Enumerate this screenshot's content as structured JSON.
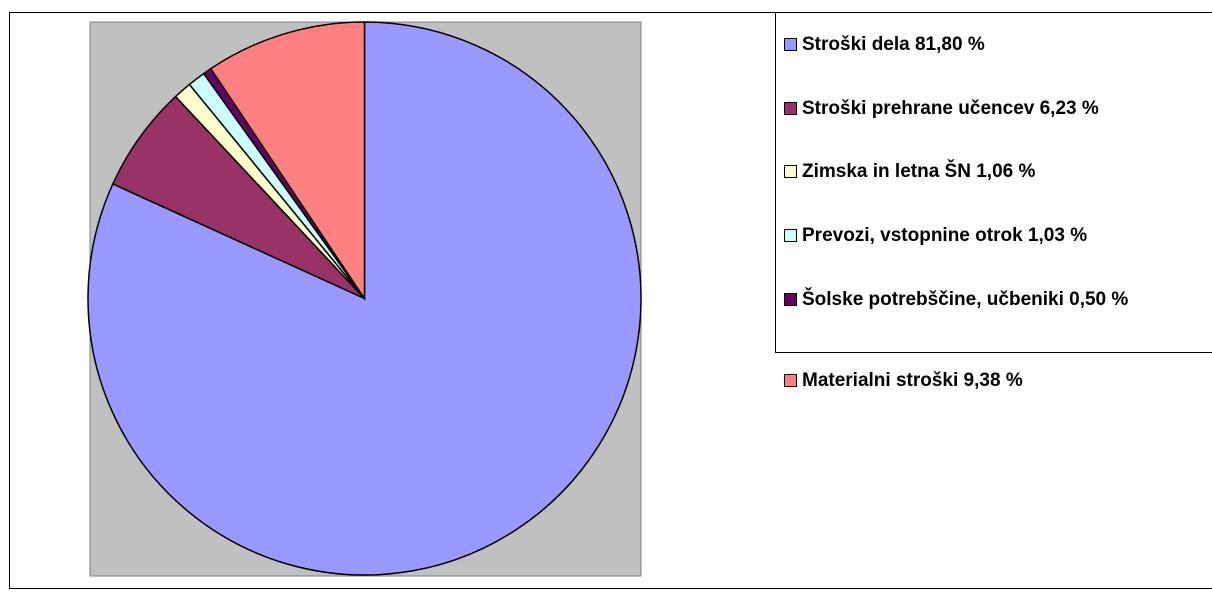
{
  "chart_data": {
    "type": "pie",
    "categories": [
      "Stroški dela 81,80 %",
      "Stroški prehrane učencev 6,23 %",
      "Zimska in letna ŠN 1,06 %",
      "Prevozi, vstopnine otrok 1,03 %",
      "Šolske potrebščine, učbeniki 0,50 %",
      "Materialni stroški 9,38 %"
    ],
    "values": [
      81.8,
      6.23,
      1.06,
      1.03,
      0.5,
      9.38
    ],
    "colors": [
      "#9999ff",
      "#993366",
      "#ffffcc",
      "#ccffff",
      "#660066",
      "#ff8080"
    ],
    "legend": "right"
  }
}
